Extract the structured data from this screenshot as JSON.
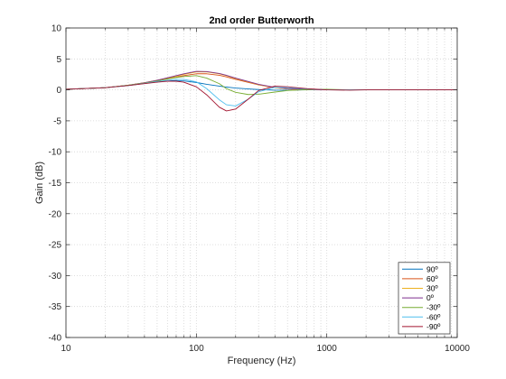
{
  "chart_data": {
    "type": "line",
    "title": "2nd order Butterworth",
    "xlabel": "Frequency (Hz)",
    "ylabel": "Gain (dB)",
    "xscale": "log",
    "xlim": [
      10,
      10000
    ],
    "ylim": [
      -40,
      10
    ],
    "xticks": [
      10,
      100,
      1000,
      10000
    ],
    "xtick_labels": [
      "10",
      "100",
      "1000",
      "10000"
    ],
    "yticks": [
      -40,
      -35,
      -30,
      -25,
      -20,
      -15,
      -10,
      -5,
      0,
      5,
      10
    ],
    "ytick_labels": [
      "-40",
      "-35",
      "-30",
      "-25",
      "-20",
      "-15",
      "-10",
      "-5",
      "0",
      "5",
      "10"
    ],
    "grid": true,
    "legend_position": "bottom-right",
    "x": [
      10,
      20,
      30,
      40,
      50,
      60,
      70,
      80,
      100,
      120,
      150,
      170,
      200,
      250,
      300,
      400,
      500,
      700,
      1000,
      1500,
      2000,
      3000,
      5000,
      10000
    ],
    "series": [
      {
        "name": "90º",
        "color": "#0072bd",
        "values": [
          0.1,
          0.35,
          0.7,
          1.05,
          1.3,
          1.45,
          1.5,
          1.45,
          1.2,
          0.9,
          0.6,
          0.45,
          0.3,
          0.15,
          0.05,
          -0.05,
          -0.05,
          0.0,
          0.0,
          0.0,
          0.0,
          0.0,
          0.0,
          0.0
        ]
      },
      {
        "name": "60º",
        "color": "#d95319",
        "values": [
          0.1,
          0.35,
          0.75,
          1.15,
          1.5,
          1.8,
          2.05,
          2.3,
          2.6,
          2.6,
          2.35,
          2.1,
          1.7,
          1.2,
          0.8,
          0.35,
          0.15,
          0.05,
          0.0,
          0.0,
          0.0,
          0.0,
          0.0,
          0.0
        ]
      },
      {
        "name": "30º",
        "color": "#edb120",
        "values": [
          0.1,
          0.35,
          0.75,
          1.15,
          1.55,
          1.9,
          2.2,
          2.5,
          2.9,
          2.9,
          2.6,
          2.3,
          1.85,
          1.3,
          0.85,
          0.35,
          0.15,
          0.05,
          0.0,
          0.0,
          0.0,
          0.0,
          0.0,
          0.0
        ]
      },
      {
        "name": "0º",
        "color": "#7e2f8e",
        "values": [
          0.1,
          0.35,
          0.75,
          1.15,
          1.55,
          1.95,
          2.3,
          2.6,
          3.0,
          2.95,
          2.65,
          2.35,
          1.9,
          1.35,
          0.9,
          0.4,
          0.2,
          0.05,
          0.0,
          0.0,
          0.0,
          0.0,
          0.0,
          0.0
        ]
      },
      {
        "name": "-30º",
        "color": "#77ac30",
        "values": [
          0.1,
          0.35,
          0.75,
          1.1,
          1.45,
          1.75,
          2.0,
          2.15,
          2.3,
          1.9,
          1.0,
          0.2,
          -0.4,
          -0.75,
          -0.7,
          -0.35,
          -0.1,
          0.05,
          0.1,
          0.0,
          0.0,
          0.0,
          0.0,
          0.0
        ]
      },
      {
        "name": "-60º",
        "color": "#4dbeee",
        "values": [
          0.1,
          0.35,
          0.7,
          1.05,
          1.35,
          1.55,
          1.7,
          1.7,
          1.3,
          0.2,
          -1.6,
          -2.4,
          -2.6,
          -1.5,
          -0.3,
          0.4,
          0.35,
          0.15,
          0.0,
          0.0,
          0.0,
          0.0,
          0.0,
          0.0
        ]
      },
      {
        "name": "-90º",
        "color": "#a2142f",
        "values": [
          0.1,
          0.35,
          0.7,
          1.0,
          1.25,
          1.4,
          1.4,
          1.25,
          0.5,
          -0.8,
          -2.8,
          -3.4,
          -3.1,
          -1.5,
          -0.1,
          0.6,
          0.5,
          0.2,
          0.0,
          -0.05,
          0.0,
          0.0,
          0.0,
          0.0
        ]
      }
    ]
  }
}
